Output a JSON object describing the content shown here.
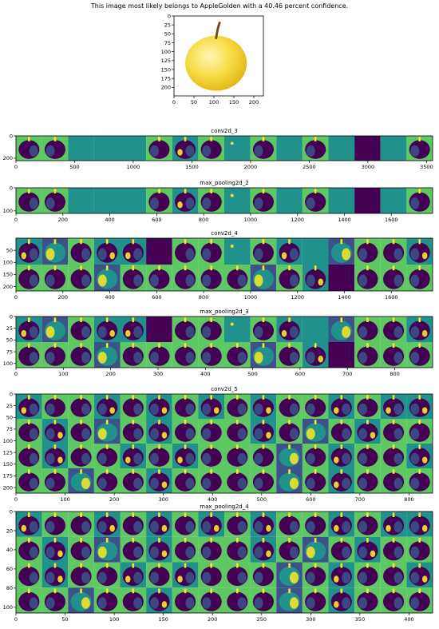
{
  "header": {
    "text": "This image most likely belongs to AppleGolden with a 40.46 percent confidence."
  },
  "colors": {
    "viridis_dark": "#440154",
    "viridis_blue": "#3b528b",
    "viridis_teal": "#21918c",
    "viridis_green": "#5ec962",
    "viridis_yellow": "#fde725",
    "background": "#ffffff"
  },
  "chart_data": [
    {
      "type": "image",
      "title": "",
      "xticks": [
        0,
        50,
        100,
        150,
        200
      ],
      "yticks": [
        0,
        25,
        50,
        75,
        100,
        125,
        150,
        175,
        200
      ],
      "xlim": [
        0,
        224
      ],
      "ylim": [
        224,
        0
      ],
      "content": "photo of a yellow apple"
    },
    {
      "type": "heatmap",
      "title": "conv2d_3",
      "xticks": [
        0,
        500,
        1000,
        1500,
        2000,
        2500,
        3000,
        3500
      ],
      "yticks": [
        0,
        200
      ],
      "xlim": [
        0,
        3552
      ],
      "ylim": [
        222,
        0
      ],
      "channels": 16,
      "rows": 1,
      "tiles": [
        "A",
        "B",
        "F",
        "F",
        "F",
        "A",
        "a",
        "A",
        "f",
        "A",
        "F",
        "A",
        "F",
        "D",
        "F",
        "A"
      ]
    },
    {
      "type": "heatmap",
      "title": "max_pooling2d_2",
      "xticks": [
        0,
        200,
        400,
        600,
        800,
        1000,
        1200,
        1400,
        1600
      ],
      "yticks": [
        0,
        100
      ],
      "xlim": [
        0,
        1776
      ],
      "ylim": [
        111,
        0
      ],
      "channels": 16,
      "rows": 1,
      "tiles": [
        "A",
        "B",
        "F",
        "F",
        "F",
        "A",
        "a",
        "A",
        "f",
        "A",
        "F",
        "A",
        "F",
        "D",
        "F",
        "A"
      ]
    },
    {
      "type": "heatmap",
      "title": "conv2d_4",
      "xticks": [
        0,
        200,
        400,
        600,
        800,
        1000,
        1200,
        1400,
        1600
      ],
      "yticks": [
        50,
        100,
        150,
        200
      ],
      "xlim": [
        0,
        1776
      ],
      "ylim": [
        218,
        0
      ],
      "channels": 32,
      "rows": 2,
      "tiles": [
        [
          "a",
          "b",
          "A",
          "a",
          "a",
          "D",
          "A",
          "A",
          "f",
          "A",
          "a",
          "F",
          "b",
          "A",
          "A",
          "a"
        ],
        [
          "A",
          "A",
          "A",
          "b",
          "A",
          "A",
          "A",
          "A",
          "A",
          "b",
          "A",
          "a",
          "D",
          "A",
          "A",
          "A"
        ]
      ]
    },
    {
      "type": "heatmap",
      "title": "max_pooling2d_3",
      "xticks": [
        0,
        100,
        200,
        300,
        400,
        500,
        600,
        700,
        800
      ],
      "yticks": [
        0,
        25,
        50,
        75,
        100
      ],
      "xlim": [
        0,
        880
      ],
      "ylim": [
        109,
        0
      ],
      "channels": 32,
      "rows": 2,
      "tiles": [
        [
          "a",
          "b",
          "A",
          "a",
          "a",
          "D",
          "A",
          "A",
          "f",
          "A",
          "a",
          "F",
          "b",
          "A",
          "A",
          "a"
        ],
        [
          "A",
          "A",
          "A",
          "b",
          "A",
          "A",
          "A",
          "A",
          "A",
          "b",
          "A",
          "a",
          "D",
          "A",
          "A",
          "A"
        ]
      ]
    },
    {
      "type": "heatmap",
      "title": "conv2d_5",
      "xticks": [
        0,
        100,
        200,
        300,
        400,
        500,
        600,
        700,
        800
      ],
      "yticks": [
        0,
        25,
        50,
        75,
        100,
        125,
        150,
        175,
        200
      ],
      "xlim": [
        0,
        848
      ],
      "ylim": [
        212,
        0
      ],
      "channels": 64,
      "rows": 4,
      "tiles": [
        [
          "a",
          "A",
          "A",
          "a",
          "A",
          "a",
          "A",
          "a",
          "A",
          "a",
          "A",
          "A",
          "a",
          "A",
          "a",
          "a"
        ],
        [
          "A",
          "a",
          "A",
          "b",
          "A",
          "a",
          "A",
          "A",
          "A",
          "a",
          "A",
          "b",
          "A",
          "a",
          "A",
          "A"
        ],
        [
          "A",
          "a",
          "A",
          "A",
          "a",
          "A",
          "a",
          "A",
          "A",
          "A",
          "b",
          "A",
          "a",
          "A",
          "A",
          "a"
        ],
        [
          "A",
          "A",
          "b",
          "A",
          "A",
          "a",
          "A",
          "A",
          "A",
          "A",
          "b",
          "A",
          "a",
          "A",
          "A",
          "A"
        ]
      ]
    },
    {
      "type": "heatmap",
      "title": "max_pooling2d_4",
      "xticks": [
        0,
        50,
        100,
        150,
        200,
        250,
        300,
        350,
        400
      ],
      "yticks": [
        0,
        20,
        40,
        60,
        80,
        100
      ],
      "xlim": [
        0,
        424
      ],
      "ylim": [
        106,
        0
      ],
      "channels": 64,
      "rows": 4,
      "tiles": [
        [
          "a",
          "A",
          "A",
          "a",
          "A",
          "a",
          "A",
          "a",
          "A",
          "a",
          "A",
          "A",
          "a",
          "A",
          "a",
          "a"
        ],
        [
          "A",
          "a",
          "A",
          "b",
          "A",
          "a",
          "A",
          "A",
          "A",
          "a",
          "A",
          "b",
          "A",
          "a",
          "A",
          "A"
        ],
        [
          "A",
          "a",
          "A",
          "A",
          "a",
          "A",
          "a",
          "A",
          "A",
          "A",
          "b",
          "A",
          "a",
          "A",
          "A",
          "a"
        ],
        [
          "A",
          "A",
          "b",
          "A",
          "A",
          "a",
          "A",
          "A",
          "A",
          "A",
          "b",
          "A",
          "a",
          "A",
          "A",
          "A"
        ]
      ]
    }
  ]
}
